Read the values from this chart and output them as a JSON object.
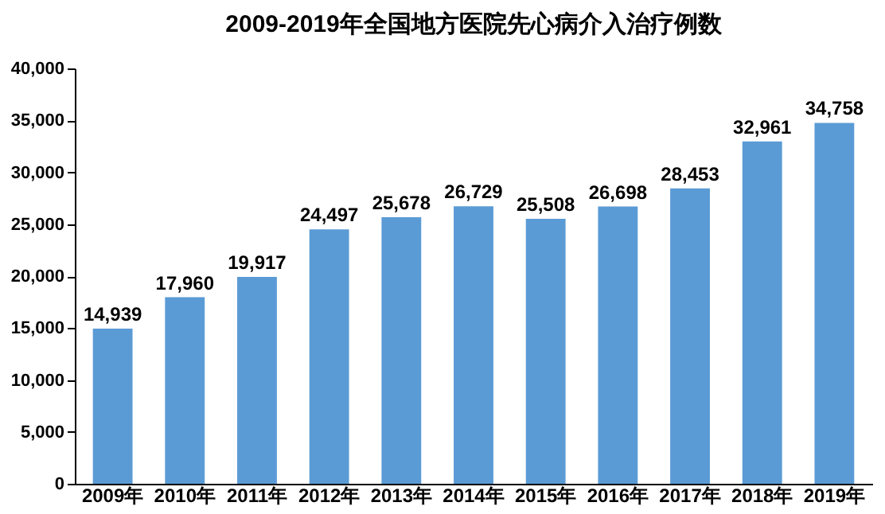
{
  "chart_data": {
    "type": "bar",
    "title": "2009-2019年全国地方医院先心病介入治疗例数",
    "categories": [
      "2009年",
      "2010年",
      "2011年",
      "2012年",
      "2013年",
      "2014年",
      "2015年",
      "2016年",
      "2017年",
      "2018年",
      "2019年"
    ],
    "values": [
      14939,
      17960,
      19917,
      24497,
      25678,
      26729,
      25508,
      26698,
      28453,
      32961,
      34758
    ],
    "value_labels": [
      "14,939",
      "17,960",
      "19,917",
      "24,497",
      "25,678",
      "26,729",
      "25,508",
      "26,698",
      "28,453",
      "32,961",
      "34,758"
    ],
    "color": "#5b9bd5",
    "ylim": [
      0,
      40000
    ],
    "yticks": [
      {
        "value": 0,
        "label": "0"
      },
      {
        "value": 5000,
        "label": "5,000"
      },
      {
        "value": 10000,
        "label": "10,000"
      },
      {
        "value": 15000,
        "label": "15,000"
      },
      {
        "value": 20000,
        "label": "20,000"
      },
      {
        "value": 25000,
        "label": "25,000"
      },
      {
        "value": 30000,
        "label": "30,000"
      },
      {
        "value": 35000,
        "label": "35,000"
      },
      {
        "value": 40000,
        "label": "40,000"
      }
    ],
    "grid": false
  }
}
